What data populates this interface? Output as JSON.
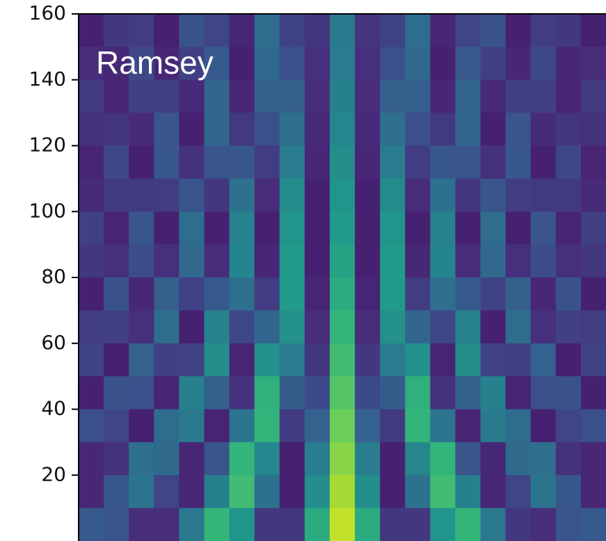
{
  "chart_data": {
    "type": "heatmap",
    "annotation": "Ramsey",
    "ylim": [
      0,
      160
    ],
    "yticks": [
      20,
      40,
      60,
      80,
      100,
      120,
      140,
      160
    ],
    "zlim": [
      0,
      110
    ],
    "colormap": [
      "#440154",
      "#482878",
      "#3e4989",
      "#31688e",
      "#26828e",
      "#1f9e89",
      "#35b779",
      "#6ece58",
      "#b5de2b",
      "#fde725"
    ],
    "z": [
      [
        10,
        18,
        20,
        10,
        28,
        23,
        12,
        39,
        22,
        17,
        44,
        17,
        22,
        39,
        12,
        23,
        28,
        10,
        20,
        18,
        10
      ],
      [
        14,
        12,
        24,
        12,
        21,
        31,
        10,
        37,
        27,
        15,
        46,
        15,
        27,
        37,
        10,
        31,
        21,
        12,
        24,
        12,
        14
      ],
      [
        19,
        11,
        21,
        21,
        13,
        36,
        12,
        33,
        33,
        14,
        48,
        14,
        33,
        33,
        12,
        36,
        13,
        21,
        21,
        11,
        19
      ],
      [
        16,
        17,
        13,
        29,
        10,
        36,
        19,
        27,
        40,
        13,
        51,
        13,
        40,
        27,
        19,
        36,
        10,
        29,
        13,
        17,
        16
      ],
      [
        11,
        24,
        10,
        30,
        16,
        29,
        30,
        20,
        46,
        12,
        54,
        12,
        46,
        20,
        30,
        29,
        16,
        30,
        10,
        24,
        11
      ],
      [
        13,
        19,
        19,
        20,
        29,
        18,
        41,
        14,
        53,
        10,
        57,
        10,
        53,
        14,
        41,
        18,
        29,
        20,
        19,
        19,
        13
      ],
      [
        21,
        11,
        29,
        10,
        39,
        10,
        49,
        10,
        57,
        10,
        60,
        10,
        57,
        10,
        49,
        10,
        39,
        10,
        29,
        11,
        21
      ],
      [
        18,
        15,
        26,
        15,
        37,
        14,
        50,
        12,
        60,
        10,
        64,
        10,
        60,
        12,
        50,
        14,
        37,
        15,
        26,
        15,
        18
      ],
      [
        10,
        28,
        12,
        33,
        22,
        31,
        40,
        20,
        60,
        11,
        68,
        11,
        60,
        20,
        40,
        31,
        22,
        33,
        12,
        28,
        10
      ],
      [
        20,
        21,
        15,
        39,
        10,
        49,
        24,
        36,
        55,
        14,
        72,
        14,
        55,
        36,
        24,
        49,
        10,
        39,
        15,
        21,
        20
      ],
      [
        22,
        10,
        34,
        21,
        22,
        54,
        11,
        55,
        46,
        18,
        76,
        18,
        46,
        55,
        11,
        54,
        22,
        21,
        34,
        10,
        22
      ],
      [
        10,
        28,
        27,
        11,
        48,
        33,
        16,
        70,
        32,
        25,
        80,
        25,
        32,
        70,
        16,
        33,
        48,
        11,
        27,
        28,
        10
      ],
      [
        27,
        23,
        10,
        39,
        45,
        11,
        43,
        72,
        19,
        34,
        85,
        34,
        19,
        72,
        43,
        11,
        45,
        39,
        10,
        23,
        27
      ],
      [
        12,
        16,
        40,
        38,
        12,
        29,
        72,
        51,
        10,
        47,
        90,
        47,
        10,
        51,
        72,
        29,
        12,
        38,
        40,
        16,
        12
      ],
      [
        12,
        30,
        42,
        23,
        12,
        48,
        76,
        41,
        10,
        54,
        95,
        54,
        10,
        41,
        76,
        48,
        12,
        23,
        42,
        30,
        12
      ],
      [
        31,
        29,
        14,
        14,
        44,
        73,
        57,
        18,
        18,
        68,
        100,
        68,
        18,
        18,
        57,
        73,
        44,
        18,
        14,
        29,
        31
      ]
    ]
  }
}
